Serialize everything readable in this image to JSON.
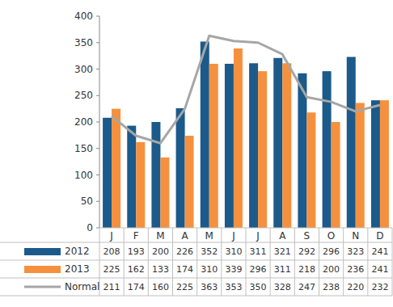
{
  "chart_data": {
    "type": "bar",
    "categories": [
      "J",
      "F",
      "M",
      "A",
      "M",
      "J",
      "J",
      "A",
      "S",
      "O",
      "N",
      "D"
    ],
    "series": [
      {
        "name": "2012",
        "type": "bar",
        "color": "#1b5a8a",
        "values": [
          208,
          193,
          200,
          226,
          352,
          310,
          311,
          321,
          292,
          296,
          323,
          241
        ]
      },
      {
        "name": "2013",
        "type": "bar",
        "color": "#f5913e",
        "values": [
          225,
          162,
          133,
          174,
          310,
          339,
          296,
          311,
          218,
          200,
          236,
          241
        ]
      },
      {
        "name": "Normal",
        "type": "line",
        "color": "#a6a6a6",
        "values": [
          211,
          174,
          160,
          225,
          363,
          353,
          350,
          328,
          247,
          238,
          220,
          232
        ]
      }
    ],
    "ylim": [
      0,
      400
    ],
    "yticks": [
      0,
      50,
      100,
      150,
      200,
      250,
      300,
      350,
      400
    ],
    "grid": false,
    "legend": "bottom"
  }
}
